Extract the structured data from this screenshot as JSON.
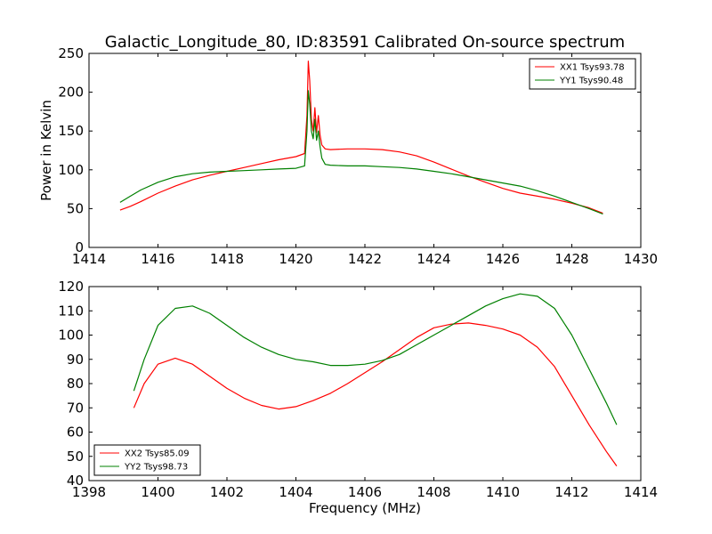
{
  "figure": {
    "title": "Galactic_Longitude_80, ID:83591 Calibrated On-source spectrum",
    "xlabel": "Frequency (MHz)"
  },
  "chart_data": [
    {
      "type": "line",
      "title": "Galactic_Longitude_80, ID:83591 Calibrated On-source spectrum",
      "xlabel": "",
      "ylabel": "Power in Kelvin",
      "xlim": [
        1414,
        1430
      ],
      "ylim": [
        0,
        250
      ],
      "xticks": [
        "1414",
        "1416",
        "1418",
        "1420",
        "1422",
        "1424",
        "1426",
        "1428",
        "1430"
      ],
      "yticks": [
        "0",
        "50",
        "100",
        "150",
        "200",
        "250"
      ],
      "grid": false,
      "legend_position": "top-right",
      "colors": {
        "XX1 Tsys93.78": "#ff0000",
        "YY1 Tsys90.48": "#008000"
      },
      "series": [
        {
          "name": "XX1 Tsys93.78",
          "x": [
            1414.9,
            1415.2,
            1415.5,
            1416.0,
            1416.5,
            1417.0,
            1417.5,
            1418.0,
            1418.5,
            1419.0,
            1419.5,
            1420.0,
            1420.25,
            1420.32,
            1420.36,
            1420.4,
            1420.45,
            1420.5,
            1420.55,
            1420.6,
            1420.65,
            1420.7,
            1420.75,
            1420.85,
            1421.0,
            1421.5,
            1422.0,
            1422.5,
            1423.0,
            1423.5,
            1424.0,
            1424.5,
            1425.0,
            1425.5,
            1426.0,
            1426.5,
            1427.0,
            1427.5,
            1428.0,
            1428.5,
            1428.9
          ],
          "values": [
            48,
            53,
            59,
            70,
            79,
            87,
            93,
            98,
            103,
            108,
            113,
            117,
            121,
            170,
            240,
            215,
            165,
            150,
            180,
            148,
            170,
            145,
            132,
            127,
            126,
            127,
            127,
            126,
            123,
            118,
            110,
            101,
            92,
            84,
            76,
            70,
            66,
            62,
            57,
            51,
            44
          ]
        },
        {
          "name": "YY1 Tsys90.48",
          "x": [
            1414.9,
            1415.2,
            1415.5,
            1416.0,
            1416.5,
            1417.0,
            1417.5,
            1418.0,
            1418.5,
            1419.0,
            1419.5,
            1420.0,
            1420.25,
            1420.32,
            1420.36,
            1420.4,
            1420.45,
            1420.5,
            1420.55,
            1420.6,
            1420.65,
            1420.7,
            1420.75,
            1420.85,
            1421.0,
            1421.5,
            1422.0,
            1422.5,
            1423.0,
            1423.5,
            1424.0,
            1424.5,
            1425.0,
            1425.5,
            1426.0,
            1426.5,
            1427.0,
            1427.5,
            1428.0,
            1428.5,
            1428.9
          ],
          "values": [
            58,
            66,
            74,
            84,
            91,
            95,
            97,
            98,
            99,
            100,
            101,
            102,
            105,
            150,
            202,
            185,
            150,
            140,
            165,
            138,
            150,
            130,
            115,
            107,
            106,
            105,
            105,
            104,
            103,
            101,
            98,
            95,
            91,
            87,
            83,
            79,
            73,
            66,
            58,
            50,
            43
          ]
        }
      ]
    },
    {
      "type": "line",
      "title": "",
      "xlabel": "Frequency (MHz)",
      "ylabel": "",
      "xlim": [
        1398,
        1414
      ],
      "ylim": [
        40,
        120
      ],
      "xticks": [
        "1398",
        "1400",
        "1402",
        "1404",
        "1406",
        "1408",
        "1410",
        "1412",
        "1414"
      ],
      "yticks": [
        "40",
        "50",
        "60",
        "70",
        "80",
        "90",
        "100",
        "110",
        "120"
      ],
      "grid": false,
      "legend_position": "bottom-left",
      "colors": {
        "XX2 Tsys85.09": "#ff0000",
        "YY2 Tsys98.73": "#008000"
      },
      "series": [
        {
          "name": "XX2 Tsys85.09",
          "x": [
            1399.3,
            1399.6,
            1400.0,
            1400.5,
            1401.0,
            1401.5,
            1402.0,
            1402.5,
            1403.0,
            1403.5,
            1404.0,
            1404.5,
            1405.0,
            1405.5,
            1406.0,
            1406.5,
            1407.0,
            1407.5,
            1408.0,
            1408.5,
            1409.0,
            1409.5,
            1410.0,
            1410.5,
            1411.0,
            1411.5,
            1412.0,
            1412.5,
            1413.0,
            1413.3
          ],
          "values": [
            70,
            80,
            88,
            90.5,
            88,
            83,
            78,
            74,
            71,
            69.5,
            70.5,
            73,
            76,
            80,
            84.5,
            89,
            94,
            99,
            103,
            104.5,
            105,
            104,
            102.5,
            100,
            95,
            87,
            75,
            63,
            52,
            46
          ]
        },
        {
          "name": "YY2 Tsys98.73",
          "x": [
            1399.3,
            1399.6,
            1400.0,
            1400.5,
            1401.0,
            1401.5,
            1402.0,
            1402.5,
            1403.0,
            1403.5,
            1404.0,
            1404.5,
            1405.0,
            1405.5,
            1406.0,
            1406.5,
            1407.0,
            1407.5,
            1408.0,
            1408.5,
            1409.0,
            1409.5,
            1410.0,
            1410.5,
            1411.0,
            1411.5,
            1412.0,
            1412.5,
            1413.0,
            1413.3
          ],
          "values": [
            77,
            90,
            104,
            111,
            112,
            109,
            104,
            99,
            95,
            92,
            90,
            89,
            87.5,
            87.5,
            88,
            89.5,
            92,
            96,
            100,
            104,
            108,
            112,
            115,
            117,
            116,
            111,
            100,
            86,
            72,
            63
          ]
        }
      ]
    }
  ]
}
